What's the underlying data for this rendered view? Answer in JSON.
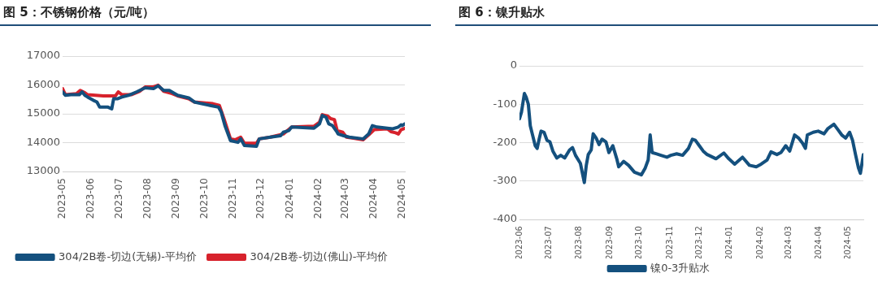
{
  "chart_data": [
    {
      "type": "line",
      "title": "图 5：不锈钢价格（元/吨）",
      "legend": "bottom",
      "grid": "y",
      "marker": "none",
      "line_style": "solid",
      "xlim": [
        "2023-05-01",
        "2024-05-04"
      ],
      "xticks": [
        {
          "value": "2023-05-01",
          "label": "2023-05"
        },
        {
          "value": "2023-06-01",
          "label": "2023-06"
        },
        {
          "value": "2023-07-01",
          "label": "2023-07"
        },
        {
          "value": "2023-08-01",
          "label": "2023-08"
        },
        {
          "value": "2023-09-01",
          "label": "2023-09"
        },
        {
          "value": "2023-10-01",
          "label": "2023-10"
        },
        {
          "value": "2023-11-01",
          "label": "2023-11"
        },
        {
          "value": "2023-12-01",
          "label": "2023-12"
        },
        {
          "value": "2024-01-01",
          "label": "2024-01"
        },
        {
          "value": "2024-02-01",
          "label": "2024-02"
        },
        {
          "value": "2024-03-01",
          "label": "2024-03"
        },
        {
          "value": "2024-04-01",
          "label": "2024-04"
        },
        {
          "value": "2024-05-01",
          "label": "2024-05"
        }
      ],
      "ylim": [
        13000,
        17000
      ],
      "yticks": [
        13000,
        14000,
        15000,
        16000,
        17000
      ],
      "series": [
        {
          "name": "304/2B卷-切边(无锡)-平均价",
          "color": "#14507e",
          "x": [
            "2023-05-01",
            "2023-05-04",
            "2023-05-10",
            "2023-05-19",
            "2023-05-22",
            "2023-05-25",
            "2023-05-28",
            "2023-06-03",
            "2023-06-07",
            "2023-06-10",
            "2023-06-19",
            "2023-06-23",
            "2023-06-25",
            "2023-06-29",
            "2023-07-04",
            "2023-07-11",
            "2023-07-20",
            "2023-07-29",
            "2023-08-07",
            "2023-08-12",
            "2023-08-18",
            "2023-08-24",
            "2023-09-02",
            "2023-09-14",
            "2023-09-20",
            "2023-09-28",
            "2023-10-07",
            "2023-10-16",
            "2023-10-19",
            "2023-10-23",
            "2023-10-29",
            "2023-11-06",
            "2023-11-09",
            "2023-11-13",
            "2023-11-26",
            "2023-11-29",
            "2023-12-11",
            "2023-12-22",
            "2023-12-25",
            "2023-12-31",
            "2024-01-03",
            "2024-01-27",
            "2024-02-02",
            "2024-02-05",
            "2024-02-09",
            "2024-02-12",
            "2024-02-16",
            "2024-02-21",
            "2024-02-22",
            "2024-02-28",
            "2024-03-05",
            "2024-03-20",
            "2024-03-26",
            "2024-03-30",
            "2024-04-04",
            "2024-04-15",
            "2024-04-21",
            "2024-04-27",
            "2024-04-30",
            "2024-05-01",
            "2024-05-04"
          ],
          "values": [
            15760,
            15640,
            15660,
            15660,
            15760,
            15640,
            15580,
            15470,
            15410,
            15230,
            15230,
            15170,
            15520,
            15520,
            15580,
            15640,
            15760,
            15900,
            15870,
            15970,
            15810,
            15810,
            15640,
            15550,
            15410,
            15350,
            15290,
            15230,
            15060,
            14590,
            14070,
            14010,
            14130,
            13900,
            13870,
            14130,
            14190,
            14240,
            14360,
            14420,
            14540,
            14500,
            14650,
            14940,
            14880,
            14650,
            14590,
            14360,
            14300,
            14240,
            14190,
            14130,
            14300,
            14590,
            14540,
            14500,
            14480,
            14540,
            14620,
            14590,
            14650
          ]
        },
        {
          "name": "304/2B卷-切边(佛山)-平均价",
          "color": "#d7222c",
          "x": [
            "2023-05-01",
            "2023-05-04",
            "2023-05-16",
            "2023-05-20",
            "2023-05-25",
            "2023-05-28",
            "2023-06-14",
            "2023-06-27",
            "2023-06-30",
            "2023-07-04",
            "2023-07-14",
            "2023-07-23",
            "2023-07-29",
            "2023-08-07",
            "2023-08-12",
            "2023-08-18",
            "2023-08-27",
            "2023-09-02",
            "2023-09-14",
            "2023-09-20",
            "2023-10-10",
            "2023-10-17",
            "2023-10-22",
            "2023-10-29",
            "2023-11-03",
            "2023-11-09",
            "2023-11-13",
            "2023-11-26",
            "2023-11-29",
            "2023-12-11",
            "2023-12-25",
            "2024-01-03",
            "2024-01-27",
            "2024-02-02",
            "2024-02-05",
            "2024-02-11",
            "2024-02-14",
            "2024-02-18",
            "2024-02-21",
            "2024-02-27",
            "2024-03-02",
            "2024-03-11",
            "2024-03-20",
            "2024-03-26",
            "2024-04-01",
            "2024-04-15",
            "2024-04-19",
            "2024-04-24",
            "2024-04-27",
            "2024-04-30",
            "2024-05-04"
          ],
          "values": [
            15870,
            15660,
            15700,
            15810,
            15730,
            15660,
            15620,
            15620,
            15760,
            15660,
            15660,
            15780,
            15930,
            15930,
            15990,
            15780,
            15700,
            15620,
            15520,
            15410,
            15350,
            15290,
            14830,
            14130,
            14100,
            14190,
            13980,
            13980,
            14130,
            14190,
            14300,
            14540,
            14570,
            14710,
            14970,
            14920,
            14830,
            14800,
            14420,
            14360,
            14190,
            14150,
            14100,
            14270,
            14450,
            14480,
            14380,
            14340,
            14300,
            14450,
            14500
          ]
        }
      ]
    },
    {
      "type": "line",
      "title": "图 6：镍升贴水",
      "legend": "bottom",
      "grid": "y",
      "marker": "none",
      "line_style": "solid",
      "xlim": [
        "2023-06-01",
        "2024-05-16"
      ],
      "xticks": [
        {
          "value": "2023-06-01",
          "label": "2023-06"
        },
        {
          "value": "2023-07-01",
          "label": "2023-07"
        },
        {
          "value": "2023-08-01",
          "label": "2023-08"
        },
        {
          "value": "2023-09-01",
          "label": "2023-09"
        },
        {
          "value": "2023-10-01",
          "label": "2023-10"
        },
        {
          "value": "2023-11-01",
          "label": "2023-11"
        },
        {
          "value": "2023-12-01",
          "label": "2023-12"
        },
        {
          "value": "2024-01-01",
          "label": "2024-01"
        },
        {
          "value": "2024-02-01",
          "label": "2024-02"
        },
        {
          "value": "2024-03-01",
          "label": "2024-03"
        },
        {
          "value": "2024-04-01",
          "label": "2024-04"
        },
        {
          "value": "2024-05-01",
          "label": "2024-05"
        }
      ],
      "ylim": [
        -400,
        0
      ],
      "yticks": [
        -400,
        -300,
        -200,
        -100,
        0
      ],
      "series": [
        {
          "name": "镍0-3升贴水",
          "color": "#14507e",
          "x": [
            "2023-06-01",
            "2023-06-03",
            "2023-06-06",
            "2023-06-08",
            "2023-06-10",
            "2023-06-12",
            "2023-06-14",
            "2023-06-17",
            "2023-06-19",
            "2023-06-21",
            "2023-06-23",
            "2023-06-26",
            "2023-06-29",
            "2023-07-02",
            "2023-07-05",
            "2023-07-09",
            "2023-07-13",
            "2023-07-17",
            "2023-07-22",
            "2023-07-25",
            "2023-07-28",
            "2023-08-02",
            "2023-08-06",
            "2023-08-08",
            "2023-08-10",
            "2023-08-13",
            "2023-08-15",
            "2023-08-18",
            "2023-08-21",
            "2023-08-24",
            "2023-08-28",
            "2023-08-31",
            "2023-09-04",
            "2023-09-08",
            "2023-09-10",
            "2023-09-15",
            "2023-09-20",
            "2023-09-26",
            "2023-10-03",
            "2023-10-07",
            "2023-10-10",
            "2023-10-12",
            "2023-10-14",
            "2023-10-18",
            "2023-10-23",
            "2023-10-29",
            "2023-11-02",
            "2023-11-08",
            "2023-11-14",
            "2023-11-20",
            "2023-11-24",
            "2023-11-27",
            "2023-12-01",
            "2023-12-05",
            "2023-12-09",
            "2023-12-18",
            "2023-12-26",
            "2023-12-31",
            "2024-01-06",
            "2024-01-14",
            "2024-01-21",
            "2024-01-28",
            "2024-02-02",
            "2024-02-08",
            "2024-02-12",
            "2024-02-18",
            "2024-02-22",
            "2024-02-27",
            "2024-03-02",
            "2024-03-07",
            "2024-03-11",
            "2024-03-15",
            "2024-03-18",
            "2024-03-20",
            "2024-03-26",
            "2024-03-31",
            "2024-04-06",
            "2024-04-10",
            "2024-04-16",
            "2024-04-20",
            "2024-04-24",
            "2024-04-28",
            "2024-05-02",
            "2024-05-05",
            "2024-05-08",
            "2024-05-11",
            "2024-05-13",
            "2024-05-16"
          ],
          "values": [
            -138,
            -121,
            -72,
            -83,
            -100,
            -156,
            -177,
            -208,
            -215,
            -191,
            -170,
            -173,
            -194,
            -198,
            -222,
            -240,
            -233,
            -240,
            -219,
            -213,
            -233,
            -254,
            -304,
            -259,
            -231,
            -219,
            -177,
            -188,
            -205,
            -191,
            -198,
            -226,
            -208,
            -242,
            -263,
            -249,
            -259,
            -277,
            -284,
            -266,
            -245,
            -180,
            -226,
            -229,
            -233,
            -238,
            -233,
            -229,
            -233,
            -215,
            -191,
            -194,
            -208,
            -222,
            -231,
            -242,
            -227,
            -242,
            -256,
            -238,
            -259,
            -263,
            -256,
            -245,
            -224,
            -231,
            -226,
            -208,
            -222,
            -180,
            -188,
            -201,
            -215,
            -180,
            -173,
            -170,
            -177,
            -163,
            -152,
            -166,
            -180,
            -188,
            -173,
            -194,
            -231,
            -266,
            -280,
            -231
          ]
        }
      ]
    }
  ]
}
